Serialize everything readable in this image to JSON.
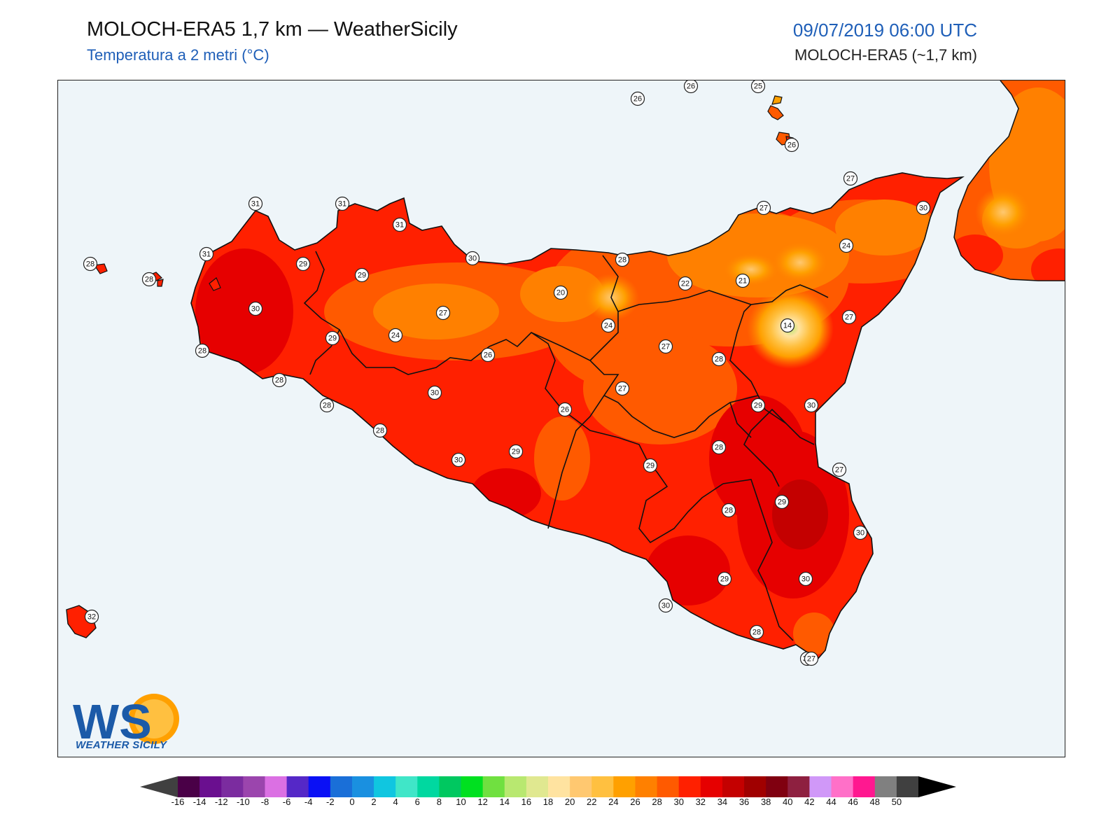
{
  "header": {
    "title": "MOLOCH-ERA5 1,7 km — WeatherSicily",
    "subtitle": "Temperatura a 2 metri (°C)",
    "datetime": "09/07/2019 06:00 UTC",
    "model": "MOLOCH-ERA5 (~1,7 km)"
  },
  "logo": {
    "letters": "WS",
    "name": "WEATHER SICILY"
  },
  "colorbar": {
    "ticks": [
      "-16",
      "-14",
      "-12",
      "-10",
      "-8",
      "-6",
      "-4",
      "-2",
      "0",
      "2",
      "4",
      "6",
      "8",
      "10",
      "12",
      "14",
      "16",
      "18",
      "20",
      "22",
      "24",
      "26",
      "28",
      "30",
      "32",
      "34",
      "36",
      "38",
      "40",
      "42",
      "44",
      "46",
      "48",
      "50"
    ],
    "colors": [
      "#4a0047",
      "#6a0f8f",
      "#7b2c9f",
      "#9b45ad",
      "#db70e3",
      "#5528c7",
      "#0a10f5",
      "#1a6fd8",
      "#1a90e0",
      "#10c6e0",
      "#40e6c8",
      "#00d8a0",
      "#00c860",
      "#00e020",
      "#70e040",
      "#b8e870",
      "#e0e890",
      "#ffe3a0",
      "#ffc870",
      "#ffc040",
      "#ffa000",
      "#ff8000",
      "#ff5a00",
      "#ff2000",
      "#e60000",
      "#c40000",
      "#a00000",
      "#800010",
      "#8e2040",
      "#d098f8",
      "#ff70c8",
      "#ff1890",
      "#808080",
      "#404040"
    ],
    "under_color": "#404040",
    "over_color": "#000000"
  },
  "stations": [
    {
      "label": "26"
    },
    {
      "label": "26"
    },
    {
      "label": "25"
    },
    {
      "label": "26"
    },
    {
      "label": "27"
    },
    {
      "label": "30"
    },
    {
      "label": "27"
    },
    {
      "label": "24"
    },
    {
      "label": "31"
    },
    {
      "label": "31"
    },
    {
      "label": "31"
    },
    {
      "label": "31"
    },
    {
      "label": "28"
    },
    {
      "label": "28"
    },
    {
      "label": "29"
    },
    {
      "label": "29"
    },
    {
      "label": "30"
    },
    {
      "label": "30"
    },
    {
      "label": "28"
    },
    {
      "label": "20"
    },
    {
      "label": "22"
    },
    {
      "label": "21"
    },
    {
      "label": "14"
    },
    {
      "label": "27"
    },
    {
      "label": "27"
    },
    {
      "label": "24"
    },
    {
      "label": "24"
    },
    {
      "label": "29"
    },
    {
      "label": "28"
    },
    {
      "label": "26"
    },
    {
      "label": "27"
    },
    {
      "label": "28"
    },
    {
      "label": "30"
    },
    {
      "label": "27"
    },
    {
      "label": "28"
    },
    {
      "label": "28"
    },
    {
      "label": "26"
    },
    {
      "label": "29"
    },
    {
      "label": "30"
    },
    {
      "label": "29"
    },
    {
      "label": "28"
    },
    {
      "label": "30"
    },
    {
      "label": "28"
    },
    {
      "label": "29"
    },
    {
      "label": "29"
    },
    {
      "label": "28"
    },
    {
      "label": "30"
    },
    {
      "label": "27"
    },
    {
      "label": "30"
    },
    {
      "label": "29"
    },
    {
      "label": "30"
    },
    {
      "label": "30"
    },
    {
      "label": "28"
    },
    {
      "label": "27"
    },
    {
      "label": "32"
    }
  ]
}
